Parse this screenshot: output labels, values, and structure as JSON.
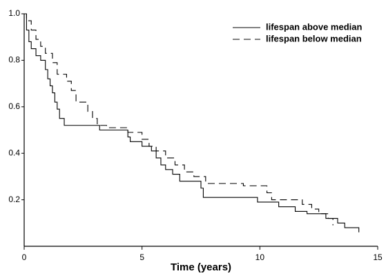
{
  "chart_data": {
    "type": "line",
    "step": "post",
    "xlabel": "Time (years)",
    "xlim": [
      0,
      15
    ],
    "xticks": [
      0,
      5,
      10,
      15
    ],
    "ylim": [
      0,
      1
    ],
    "yticks": [
      0.2,
      0.4,
      0.6,
      0.8,
      {
        "value": 1,
        "label": "1.0"
      }
    ],
    "legend": "upper right",
    "series": [
      {
        "name": "lifespan above median",
        "color": "#000000",
        "line_style": "solid",
        "x": [
          0,
          0.1,
          0.2,
          0.3,
          0.5,
          0.7,
          0.9,
          1.0,
          1.1,
          1.2,
          1.3,
          1.4,
          1.5,
          1.7,
          3.2,
          4.4,
          4.5,
          5.0,
          5.4,
          5.6,
          5.8,
          6.0,
          6.3,
          6.6,
          7.5,
          7.6,
          9.9,
          10.8,
          11.5,
          12.0,
          12.8,
          13.3,
          13.6,
          14.2
        ],
        "values": [
          1.0,
          0.93,
          0.88,
          0.85,
          0.82,
          0.8,
          0.76,
          0.72,
          0.69,
          0.66,
          0.62,
          0.59,
          0.55,
          0.52,
          0.5,
          0.47,
          0.45,
          0.43,
          0.41,
          0.38,
          0.35,
          0.33,
          0.31,
          0.28,
          0.25,
          0.21,
          0.19,
          0.17,
          0.15,
          0.14,
          0.12,
          0.1,
          0.08,
          0.06
        ]
      },
      {
        "name": "lifespan below median",
        "color": "#000000",
        "line_style": "dashed",
        "x": [
          0,
          0.1,
          0.3,
          0.5,
          0.7,
          0.9,
          1.2,
          1.4,
          1.8,
          2.0,
          2.2,
          2.7,
          2.9,
          3.1,
          3.5,
          4.4,
          5.0,
          5.3,
          5.6,
          6.0,
          6.4,
          6.8,
          7.2,
          7.7,
          9.3,
          10.3,
          10.5,
          11.8,
          12.2,
          12.5,
          12.9,
          13.1
        ],
        "values": [
          1.0,
          0.97,
          0.93,
          0.89,
          0.86,
          0.83,
          0.79,
          0.74,
          0.71,
          0.67,
          0.62,
          0.58,
          0.55,
          0.52,
          0.51,
          0.49,
          0.46,
          0.43,
          0.41,
          0.38,
          0.35,
          0.32,
          0.3,
          0.27,
          0.26,
          0.23,
          0.2,
          0.18,
          0.16,
          0.14,
          0.12,
          0.09
        ]
      }
    ]
  }
}
